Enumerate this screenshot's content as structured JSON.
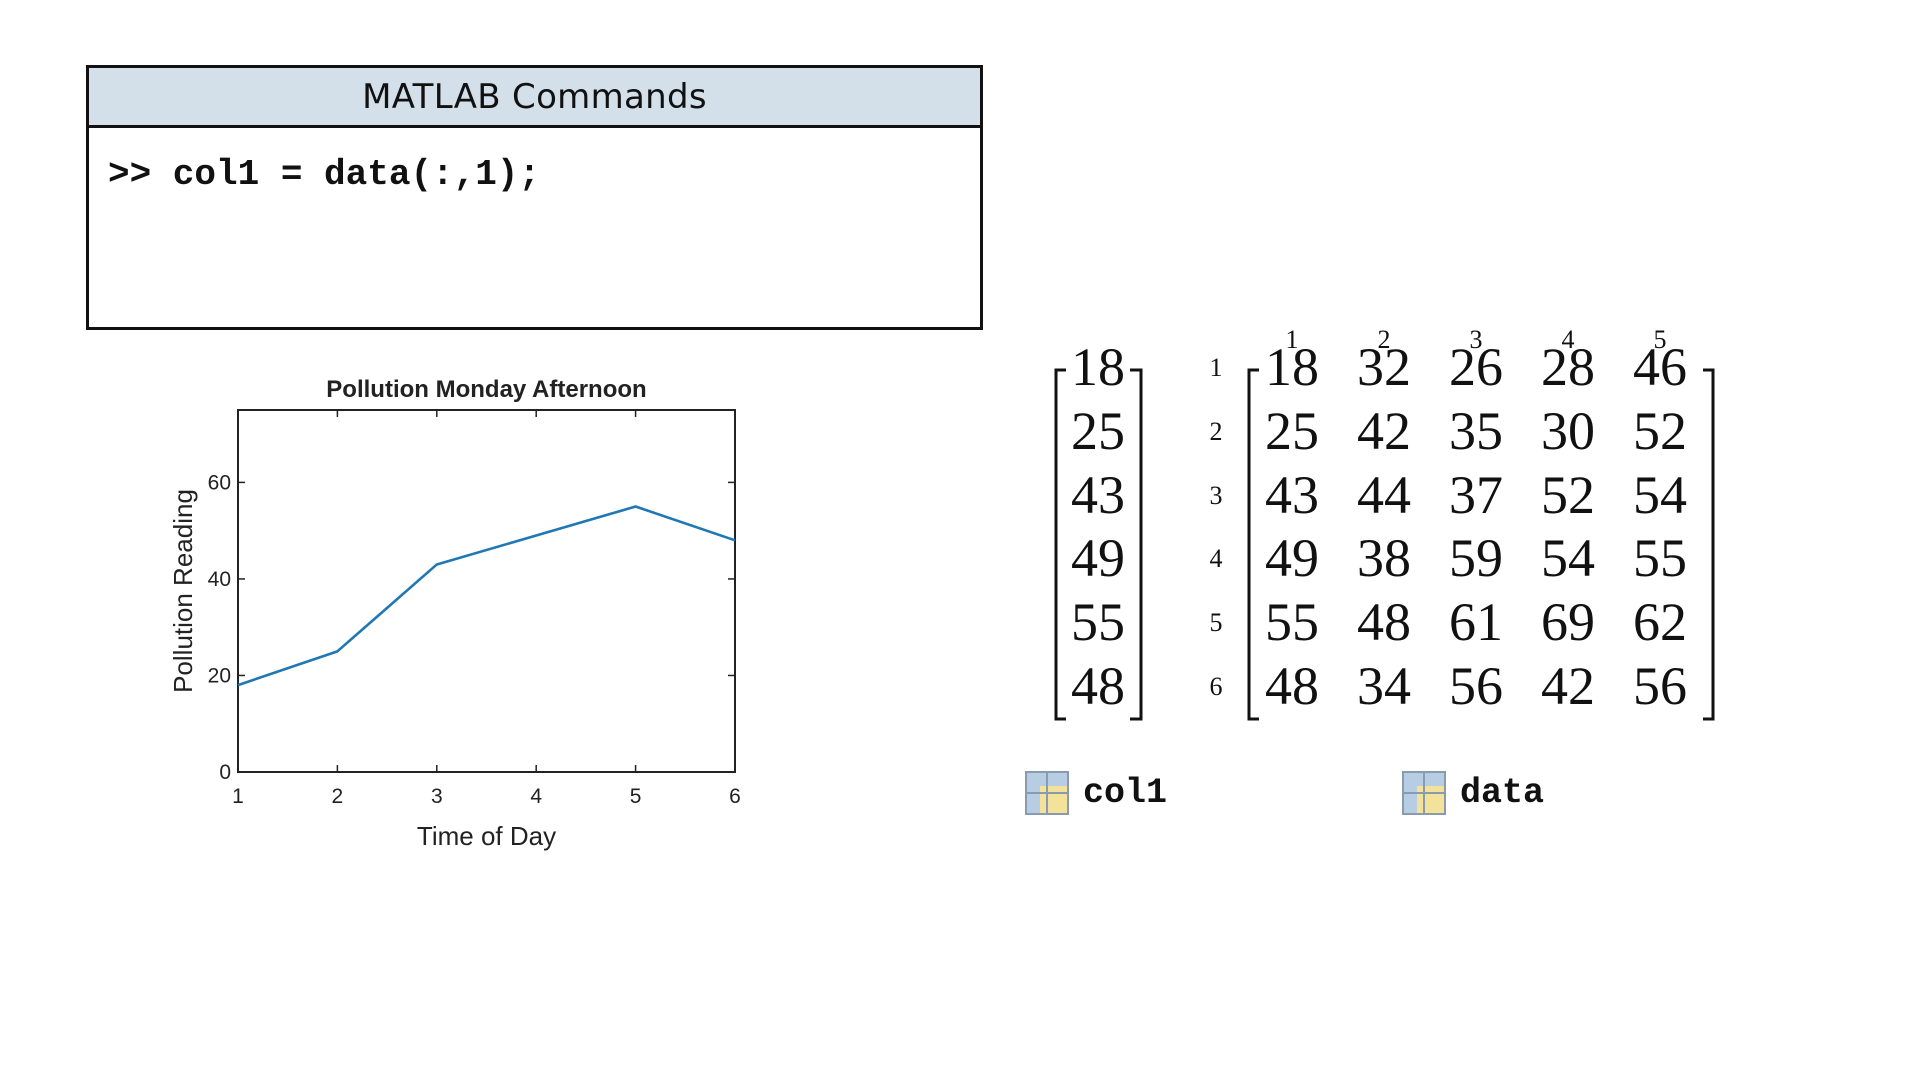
{
  "commands_panel": {
    "title": "MATLAB Commands",
    "command": ">> col1 = data(:,1);"
  },
  "chart_data": {
    "type": "line",
    "title": "Pollution Monday Afternoon",
    "xlabel": "Time of Day",
    "ylabel": "Pollution Reading",
    "x": [
      1,
      2,
      3,
      4,
      5,
      6
    ],
    "series": [
      {
        "values": [
          18,
          25,
          43,
          49,
          55,
          48
        ]
      }
    ],
    "xlim": [
      1,
      6
    ],
    "ylim": [
      0,
      75
    ],
    "xticks": [
      1,
      2,
      3,
      4,
      5,
      6
    ],
    "yticks": [
      0,
      20,
      40,
      60
    ],
    "grid": false,
    "line_color": "#1f77b4"
  },
  "col1_vector": [
    18,
    25,
    43,
    49,
    55,
    48
  ],
  "data_matrix": {
    "column_indices": [
      "1",
      "2",
      "3",
      "4",
      "5"
    ],
    "row_indices": [
      "1",
      "2",
      "3",
      "4",
      "5",
      "6"
    ],
    "rows": [
      [
        18,
        32,
        26,
        28,
        46
      ],
      [
        25,
        42,
        35,
        30,
        52
      ],
      [
        43,
        44,
        37,
        52,
        54
      ],
      [
        49,
        38,
        59,
        54,
        55
      ],
      [
        55,
        48,
        61,
        69,
        62
      ],
      [
        48,
        34,
        56,
        42,
        56
      ]
    ]
  },
  "workspace": {
    "variables": [
      {
        "name": "col1",
        "icon": "matrix-grid-icon"
      },
      {
        "name": "data",
        "icon": "matrix-grid-icon"
      }
    ],
    "icon_colors": {
      "fill": "#f3e39a",
      "header": "#b6cde3",
      "border": "#8a9bb0"
    }
  }
}
